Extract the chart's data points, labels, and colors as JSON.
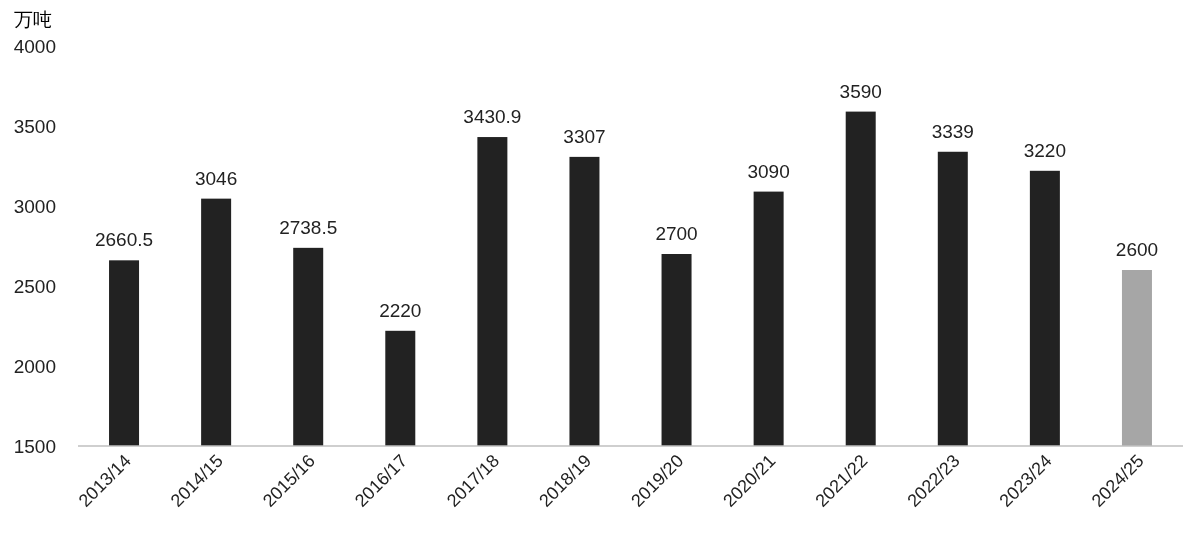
{
  "chart_data": {
    "type": "bar",
    "ylabel": "万吨",
    "categories": [
      "2013/14",
      "2014/15",
      "2015/16",
      "2016/17",
      "2017/18",
      "2018/19",
      "2019/20",
      "2020/21",
      "2021/22",
      "2022/23",
      "2023/24",
      "2024/25"
    ],
    "values": [
      2660.5,
      3046,
      2738.5,
      2220,
      3430.9,
      3307,
      2700,
      3090,
      3590,
      3339,
      3220,
      2600
    ],
    "colors": [
      "#222222",
      "#222222",
      "#222222",
      "#222222",
      "#222222",
      "#222222",
      "#222222",
      "#222222",
      "#222222",
      "#222222",
      "#222222",
      "#a6a6a6"
    ],
    "ylim": [
      1500,
      4000
    ],
    "yticks": [
      1500,
      2000,
      2500,
      3000,
      3500,
      4000
    ],
    "data_labels": true,
    "grid": false
  }
}
